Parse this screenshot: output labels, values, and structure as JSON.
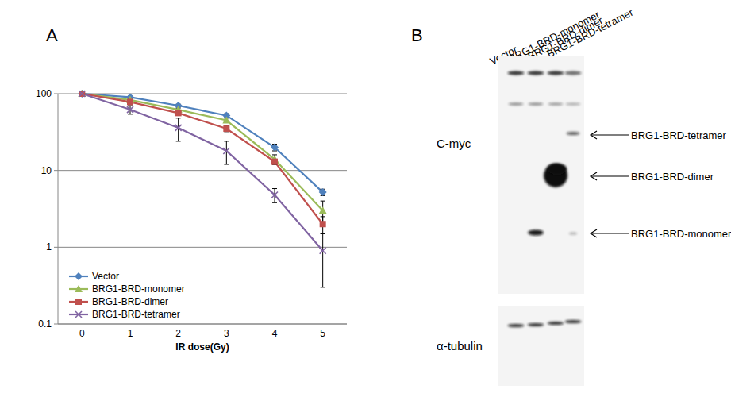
{
  "panels": {
    "a": "A",
    "b": "B"
  },
  "chart_data": {
    "type": "line",
    "x_label": "IR dose(Gy)",
    "categories": [
      "0",
      "1",
      "2",
      "3",
      "4",
      "5"
    ],
    "log": "y",
    "ylim": [
      0.1,
      100
    ],
    "yticks": [
      0.1,
      1,
      10,
      100
    ],
    "grid": true,
    "legend": "lower left",
    "series": [
      {
        "name": "Vector",
        "color": "#4f81bd",
        "marker": "diamond",
        "values": [
          100,
          90,
          70,
          52,
          20,
          5.2
        ],
        "errors": [
          0,
          3,
          3,
          3,
          2,
          0.5
        ]
      },
      {
        "name": "BRG1-BRD-monomer",
        "color": "#9bbb59",
        "marker": "triangle",
        "values": [
          100,
          83,
          62,
          45,
          14,
          3.0
        ],
        "errors": [
          0,
          3,
          3,
          3,
          2,
          1.0
        ]
      },
      {
        "name": "BRG1-BRD-dimer",
        "color": "#c0504d",
        "marker": "square",
        "values": [
          100,
          78,
          56,
          35,
          13,
          2.0
        ],
        "errors": [
          0,
          3,
          3,
          3,
          1,
          0.5
        ]
      },
      {
        "name": "BRG1-BRD-tetramer",
        "color": "#8064a2",
        "marker": "x",
        "values": [
          100,
          62,
          36,
          18,
          4.8,
          0.9
        ],
        "errors": [
          0,
          8,
          12,
          6,
          1,
          0.6
        ]
      }
    ]
  },
  "blot": {
    "lanes": [
      "Vector",
      "BRG1-BRD-monomer",
      "BRG1-BRD-dimer",
      "BRG1-BRD-tetramer"
    ],
    "panels": [
      {
        "label": "C-myc",
        "bands": [
          "BRG1-BRD-tetramer",
          "BRG1-BRD-dimer",
          "BRG1-BRD-monomer"
        ]
      },
      {
        "label": "α-tubulin"
      }
    ]
  }
}
